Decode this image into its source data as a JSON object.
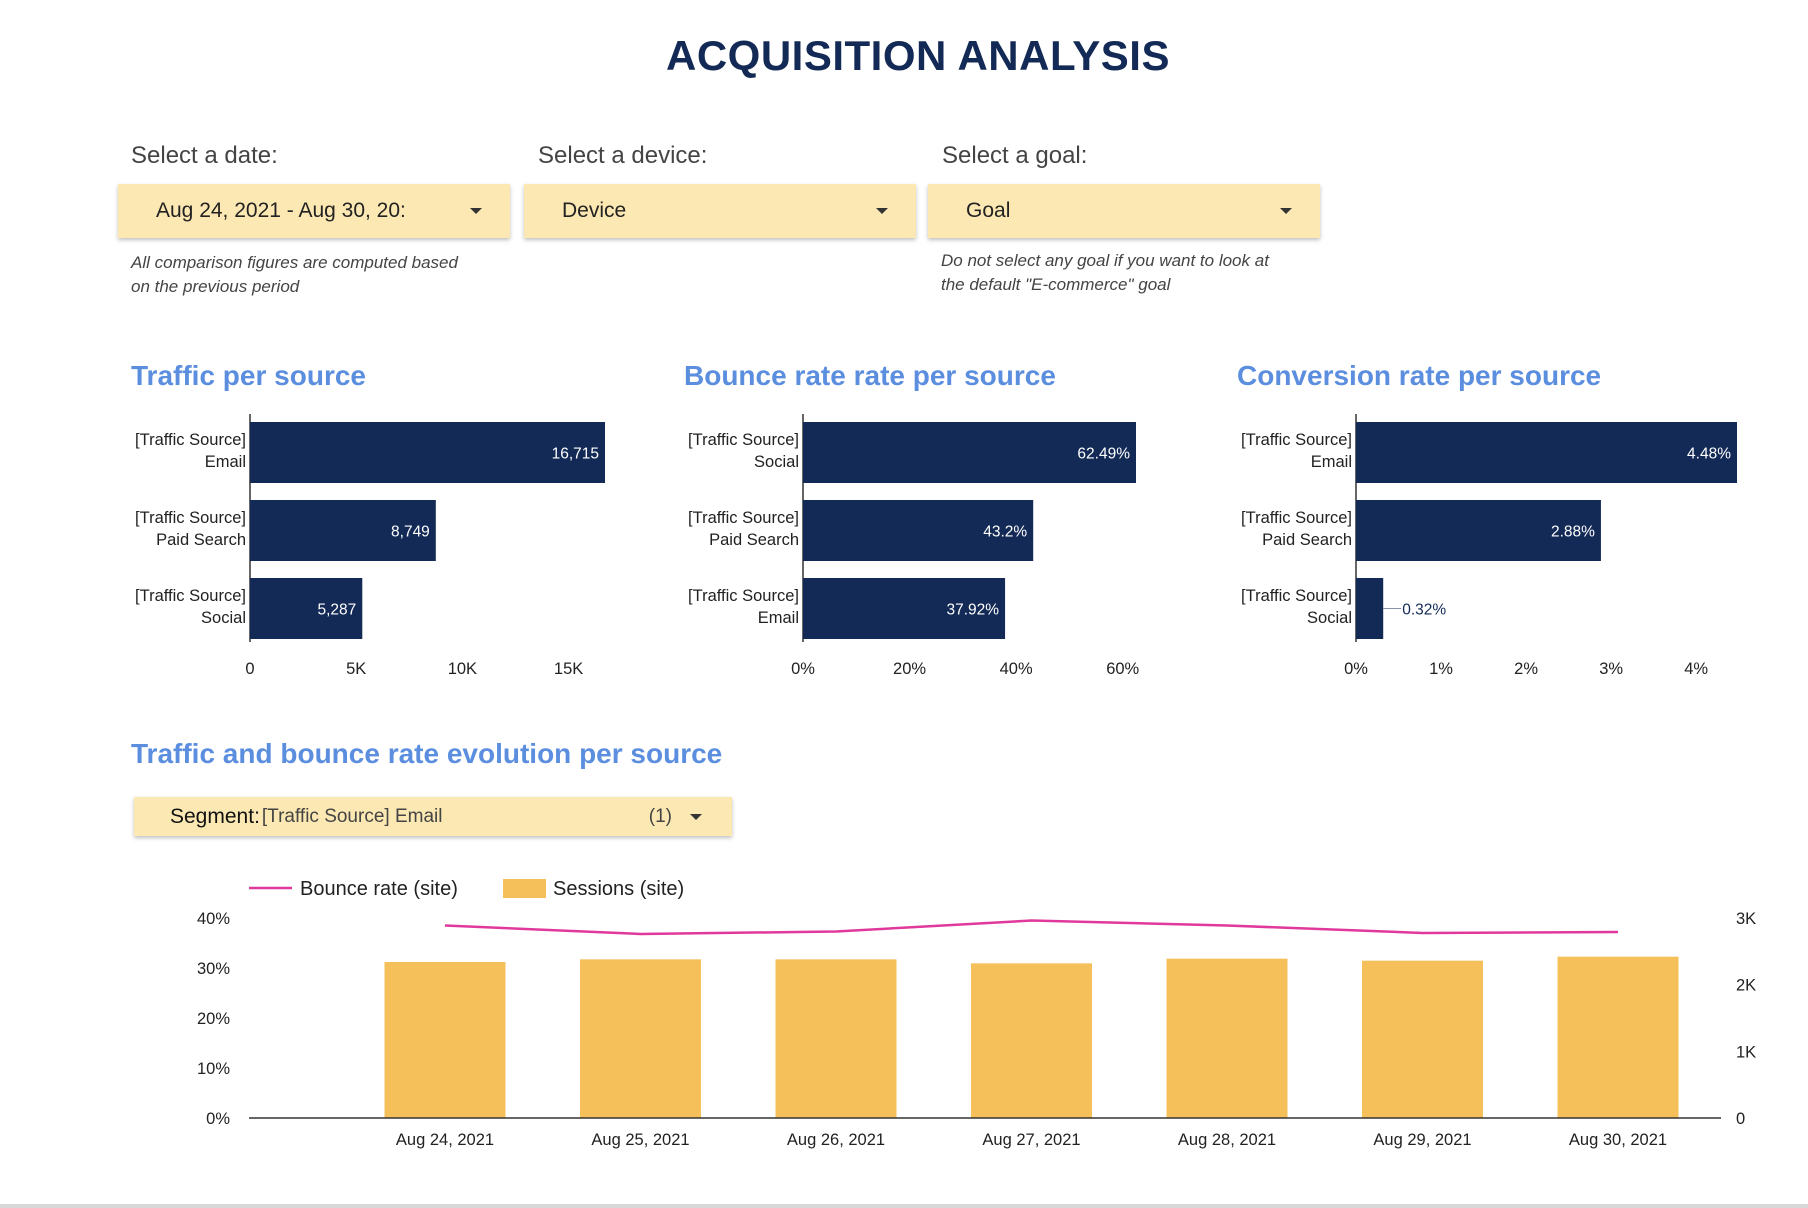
{
  "title": "ACQUISITION ANALYSIS",
  "filters": {
    "date": {
      "label": "Select a date:",
      "value": "Aug 24, 2021 - Aug 30, 20:",
      "note_line1": "All comparison figures are computed based",
      "note_line2": "on the previous period"
    },
    "device": {
      "label": "Select a device:",
      "value": "Device"
    },
    "goal": {
      "label": "Select a goal:",
      "value": "Goal",
      "note_line1": "Do not select any goal if you want to look at",
      "note_line2": "the default \"E-commerce\" goal"
    }
  },
  "segment": {
    "key": "Segment",
    "value": "[Traffic Source] Email",
    "count": "(1)"
  },
  "colors": {
    "bar": "#142a56",
    "title": "#5b8ede",
    "sessions": "#f5c05a",
    "bounce": "#e0399b",
    "dropdown": "#fce8b2"
  },
  "chart_data": [
    {
      "type": "bar",
      "orientation": "horizontal",
      "title": "Traffic per source",
      "categories": [
        [
          "[Traffic Source]",
          "Email"
        ],
        [
          "[Traffic Source]",
          "Paid Search"
        ],
        [
          "[Traffic Source]",
          "Social"
        ]
      ],
      "values": [
        16715,
        8749,
        5287
      ],
      "value_labels": [
        "16,715",
        "8,749",
        "5,287"
      ],
      "xlim": [
        0,
        16715
      ],
      "ticks": [
        0,
        5000,
        10000,
        15000
      ],
      "tick_labels": [
        "0",
        "5K",
        "10K",
        "15K"
      ]
    },
    {
      "type": "bar",
      "orientation": "horizontal",
      "title": "Bounce rate rate per source",
      "categories": [
        [
          "[Traffic Source]",
          "Social"
        ],
        [
          "[Traffic Source]",
          "Paid Search"
        ],
        [
          "[Traffic Source]",
          "Email"
        ]
      ],
      "values": [
        62.49,
        43.2,
        37.92
      ],
      "value_labels": [
        "62.49%",
        "43.2%",
        "37.92%"
      ],
      "xlim": [
        0,
        62.49
      ],
      "ticks": [
        0,
        20,
        40,
        60
      ],
      "tick_labels": [
        "0%",
        "20%",
        "40%",
        "60%"
      ]
    },
    {
      "type": "bar",
      "orientation": "horizontal",
      "title": "Conversion rate per source",
      "categories": [
        [
          "[Traffic Source]",
          "Email"
        ],
        [
          "[Traffic Source]",
          "Paid Search"
        ],
        [
          "[Traffic Source]",
          "Social"
        ]
      ],
      "values": [
        4.48,
        2.88,
        0.32
      ],
      "value_labels": [
        "4.48%",
        "2.88%",
        "0.32%"
      ],
      "xlim": [
        0,
        4.48
      ],
      "ticks": [
        0,
        1,
        2,
        3,
        4
      ],
      "tick_labels": [
        "0%",
        "1%",
        "2%",
        "3%",
        "4%"
      ]
    },
    {
      "type": "bar",
      "title": "Traffic and bounce rate evolution per source",
      "categories": [
        "Aug 24, 2021",
        "Aug 25, 2021",
        "Aug 26, 2021",
        "Aug 27, 2021",
        "Aug 28, 2021",
        "Aug 29, 2021",
        "Aug 30, 2021"
      ],
      "legend": [
        "Bounce rate (site)",
        "Sessions (site)"
      ],
      "series": [
        {
          "name": "Sessions (site)",
          "type": "bar",
          "axis": "right",
          "values": [
            2340,
            2380,
            2380,
            2320,
            2390,
            2360,
            2420
          ]
        },
        {
          "name": "Bounce rate (site)",
          "type": "line",
          "axis": "left",
          "values": [
            38.5,
            36.8,
            37.3,
            39.5,
            38.5,
            37.0,
            37.2
          ]
        }
      ],
      "ylim_left": [
        0,
        40
      ],
      "yticks_left": [
        "0%",
        "10%",
        "20%",
        "30%",
        "40%"
      ],
      "ylim_right": [
        0,
        3000
      ],
      "yticks_right": [
        "0",
        "1K",
        "2K",
        "3K"
      ]
    }
  ]
}
